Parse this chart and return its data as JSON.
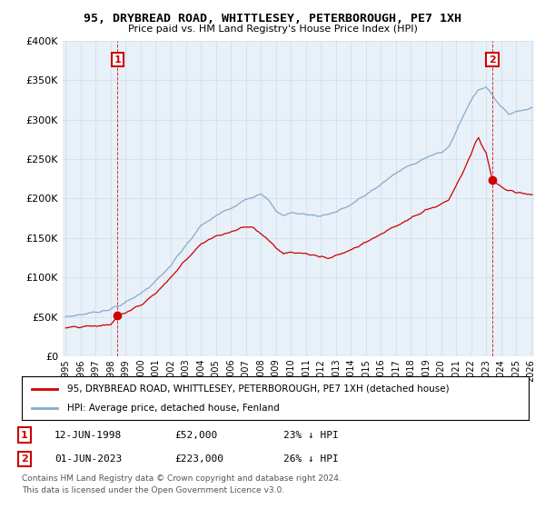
{
  "title": "95, DRYBREAD ROAD, WHITTLESEY, PETERBOROUGH, PE7 1XH",
  "subtitle": "Price paid vs. HM Land Registry's House Price Index (HPI)",
  "ylim": [
    0,
    400000
  ],
  "yticks": [
    0,
    50000,
    100000,
    150000,
    200000,
    250000,
    300000,
    350000,
    400000
  ],
  "x_start_year": 1995,
  "x_end_year": 2026,
  "transaction1": {
    "date_num": 1998.45,
    "price": 52000,
    "label": "1",
    "date_str": "12-JUN-1998",
    "amount": "£52,000",
    "note": "23% ↓ HPI"
  },
  "transaction2": {
    "date_num": 2023.42,
    "price": 223000,
    "label": "2",
    "date_str": "01-JUN-2023",
    "amount": "£223,000",
    "note": "26% ↓ HPI"
  },
  "house_color": "#cc0000",
  "hpi_color": "#88aacc",
  "legend_house": "95, DRYBREAD ROAD, WHITTLESEY, PETERBOROUGH, PE7 1XH (detached house)",
  "legend_hpi": "HPI: Average price, detached house, Fenland",
  "footnote1": "Contains HM Land Registry data © Crown copyright and database right 2024.",
  "footnote2": "This data is licensed under the Open Government Licence v3.0.",
  "background_color": "#ffffff",
  "grid_color": "#ccddee",
  "plot_bg": "#e8f0f8"
}
